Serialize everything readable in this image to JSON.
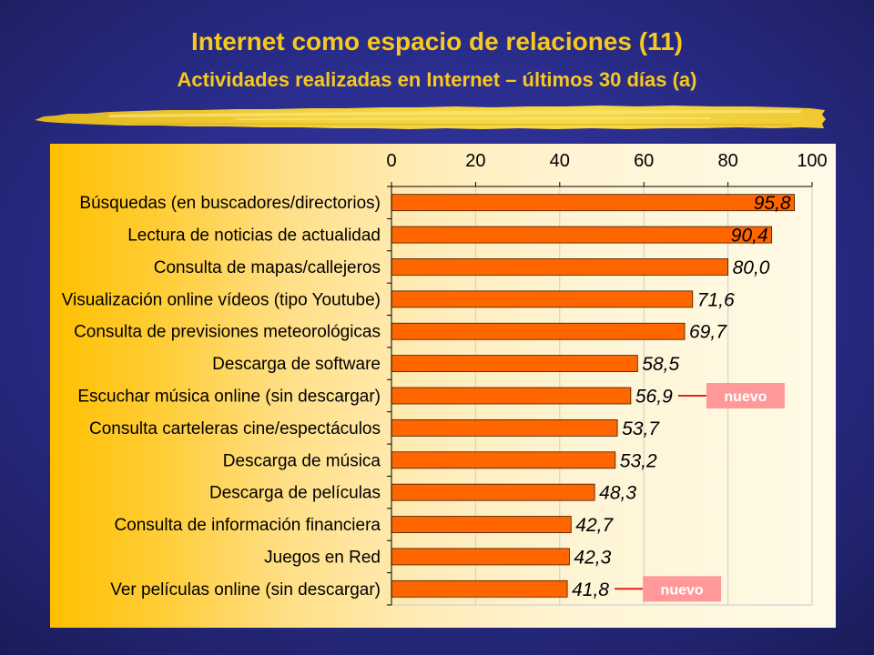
{
  "slide": {
    "title": "Internet como espacio de relaciones (11)",
    "subtitle": "Actividades realizadas en Internet – últimos 30 días (a)"
  },
  "colors": {
    "title": "#F7C81E",
    "bar": "#FF6600",
    "bar_outline": "#3a1a00",
    "badge": "#FF9999",
    "badge_text": "#FFFFFF",
    "badge_connector": "#E0231C",
    "axis": "#000000",
    "gridline": "#d2d2d2"
  },
  "chart_data": {
    "type": "bar",
    "orientation": "horizontal",
    "categories": [
      "Búsquedas (en buscadores/directorios)",
      "Lectura de noticias de actualidad",
      "Consulta de mapas/callejeros",
      "Visualización online vídeos (tipo Youtube)",
      "Consulta de previsiones meteorológicas",
      "Descarga de software",
      "Escuchar música online (sin descargar)",
      "Consulta carteleras cine/espectáculos",
      "Descarga de música",
      "Descarga de películas",
      "Consulta de información financiera",
      "Juegos en Red",
      "Ver películas online (sin descargar)"
    ],
    "values": [
      95.8,
      90.4,
      80.0,
      71.6,
      69.7,
      58.5,
      56.9,
      53.7,
      53.2,
      48.3,
      42.7,
      42.3,
      41.8
    ],
    "value_labels": [
      "95,8",
      "90,4",
      "80,0",
      "71,6",
      "69,7",
      "58,5",
      "56,9",
      "53,7",
      "53,2",
      "48,3",
      "42,7",
      "42,3",
      "41,8"
    ],
    "xlim": [
      0,
      100
    ],
    "x_ticks": [
      0,
      20,
      40,
      60,
      80,
      100
    ],
    "x_axis_position": "top",
    "grid": true,
    "annotations": [
      {
        "text": "nuevo",
        "category_index": 6
      },
      {
        "text": "nuevo",
        "category_index": 12
      }
    ]
  }
}
